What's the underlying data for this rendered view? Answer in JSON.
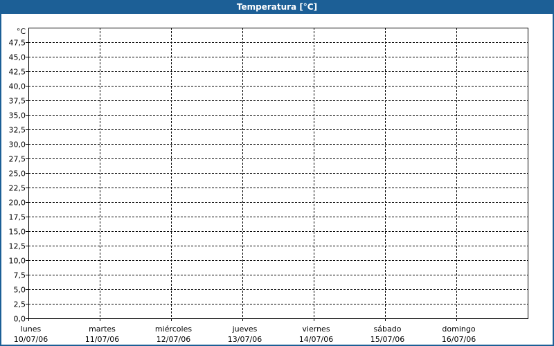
{
  "window": {
    "title": "Temperatura [°C]"
  },
  "chart_data": {
    "type": "line",
    "title": "Temperatura [°C]",
    "ylabel": "°C",
    "ylim": [
      0,
      50
    ],
    "ytick_step": 2.5,
    "yticks": [
      "0,0",
      "2,5",
      "5,0",
      "7,5",
      "10,0",
      "12,5",
      "15,0",
      "17,5",
      "20,0",
      "22,5",
      "25,0",
      "27,5",
      "30,0",
      "32,5",
      "35,0",
      "37,5",
      "40,0",
      "42,5",
      "45,0",
      "47,5"
    ],
    "categories": [
      {
        "day": "lunes",
        "date": "10/07/06"
      },
      {
        "day": "martes",
        "date": "11/07/06"
      },
      {
        "day": "miércoles",
        "date": "12/07/06"
      },
      {
        "day": "jueves",
        "date": "13/07/06"
      },
      {
        "day": "viernes",
        "date": "14/07/06"
      },
      {
        "day": "sábado",
        "date": "15/07/06"
      },
      {
        "day": "domingo",
        "date": "16/07/06"
      }
    ],
    "series": [],
    "grid": true,
    "colors": {
      "titlebar": "#1c5f96",
      "grid": "#000000"
    }
  }
}
